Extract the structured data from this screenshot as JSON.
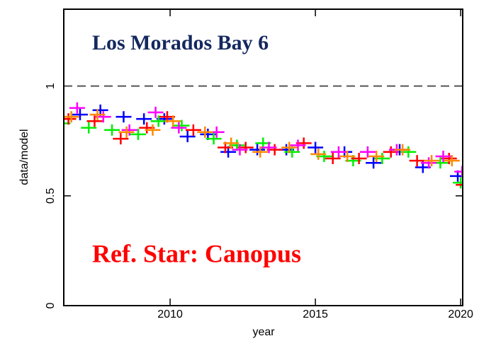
{
  "chart_data": {
    "type": "scatter",
    "annotations": [
      "Los Morados Bay 6",
      "Ref. Star: Canopus"
    ],
    "annotation_colors": [
      "#14285f",
      "#ff0000"
    ],
    "xlabel": "year",
    "ylabel": "data/model",
    "xlim": [
      2006.34,
      2020.07
    ],
    "ylim": [
      0,
      1.35
    ],
    "xticks": [
      2010,
      2015,
      2020
    ],
    "yticks": [
      0,
      0.5,
      1
    ],
    "hline": 1,
    "series": [
      {
        "color": "#0000ff",
        "x": [
          2006.9,
          2007.6,
          2008.4,
          2009.1,
          2009.8,
          2010.6,
          2011.3,
          2012.0,
          2013.0,
          2014.0,
          2015.0,
          2016.0,
          2017.0,
          2017.9,
          2018.7,
          2019.9
        ],
        "values": [
          0.87,
          0.89,
          0.86,
          0.85,
          0.85,
          0.77,
          0.78,
          0.7,
          0.71,
          0.71,
          0.72,
          0.7,
          0.65,
          0.71,
          0.63,
          0.59
        ]
      },
      {
        "color": "#00ee00",
        "x": [
          2006.3,
          2007.2,
          2008.0,
          2008.9,
          2009.6,
          2010.4,
          2011.5,
          2012.3,
          2013.2,
          2014.2,
          2015.3,
          2016.3,
          2017.3,
          2018.2,
          2019.3,
          2020.0
        ],
        "values": [
          0.83,
          0.81,
          0.8,
          0.78,
          0.84,
          0.82,
          0.76,
          0.73,
          0.74,
          0.7,
          0.68,
          0.66,
          0.67,
          0.7,
          0.65,
          0.56
        ]
      },
      {
        "color": "#ff0000",
        "x": [
          2006.5,
          2007.4,
          2008.3,
          2009.2,
          2009.9,
          2010.8,
          2011.9,
          2012.6,
          2013.6,
          2014.6,
          2015.6,
          2016.5,
          2017.6,
          2018.5,
          2019.6,
          2020.1
        ],
        "values": [
          0.85,
          0.84,
          0.76,
          0.81,
          0.86,
          0.8,
          0.72,
          0.72,
          0.71,
          0.74,
          0.67,
          0.67,
          0.7,
          0.66,
          0.67,
          0.55
        ]
      },
      {
        "color": "#ff00ff",
        "x": [
          2006.8,
          2007.7,
          2008.6,
          2009.5,
          2010.3,
          2011.6,
          2012.4,
          2013.4,
          2014.4,
          2015.8,
          2016.8,
          2017.8,
          2018.9,
          2019.4,
          2020.05
        ],
        "values": [
          0.9,
          0.86,
          0.8,
          0.88,
          0.81,
          0.79,
          0.71,
          0.72,
          0.73,
          0.7,
          0.7,
          0.71,
          0.65,
          0.68,
          0.61
        ]
      },
      {
        "color": "#ff8800",
        "x": [
          2006.6,
          2007.5,
          2008.5,
          2009.4,
          2010.1,
          2011.2,
          2012.1,
          2013.1,
          2014.1,
          2015.1,
          2016.1,
          2017.1,
          2018.0,
          2019.0,
          2019.7
        ],
        "values": [
          0.86,
          0.87,
          0.79,
          0.8,
          0.84,
          0.79,
          0.74,
          0.7,
          0.72,
          0.69,
          0.68,
          0.68,
          0.71,
          0.66,
          0.66
        ]
      }
    ]
  }
}
